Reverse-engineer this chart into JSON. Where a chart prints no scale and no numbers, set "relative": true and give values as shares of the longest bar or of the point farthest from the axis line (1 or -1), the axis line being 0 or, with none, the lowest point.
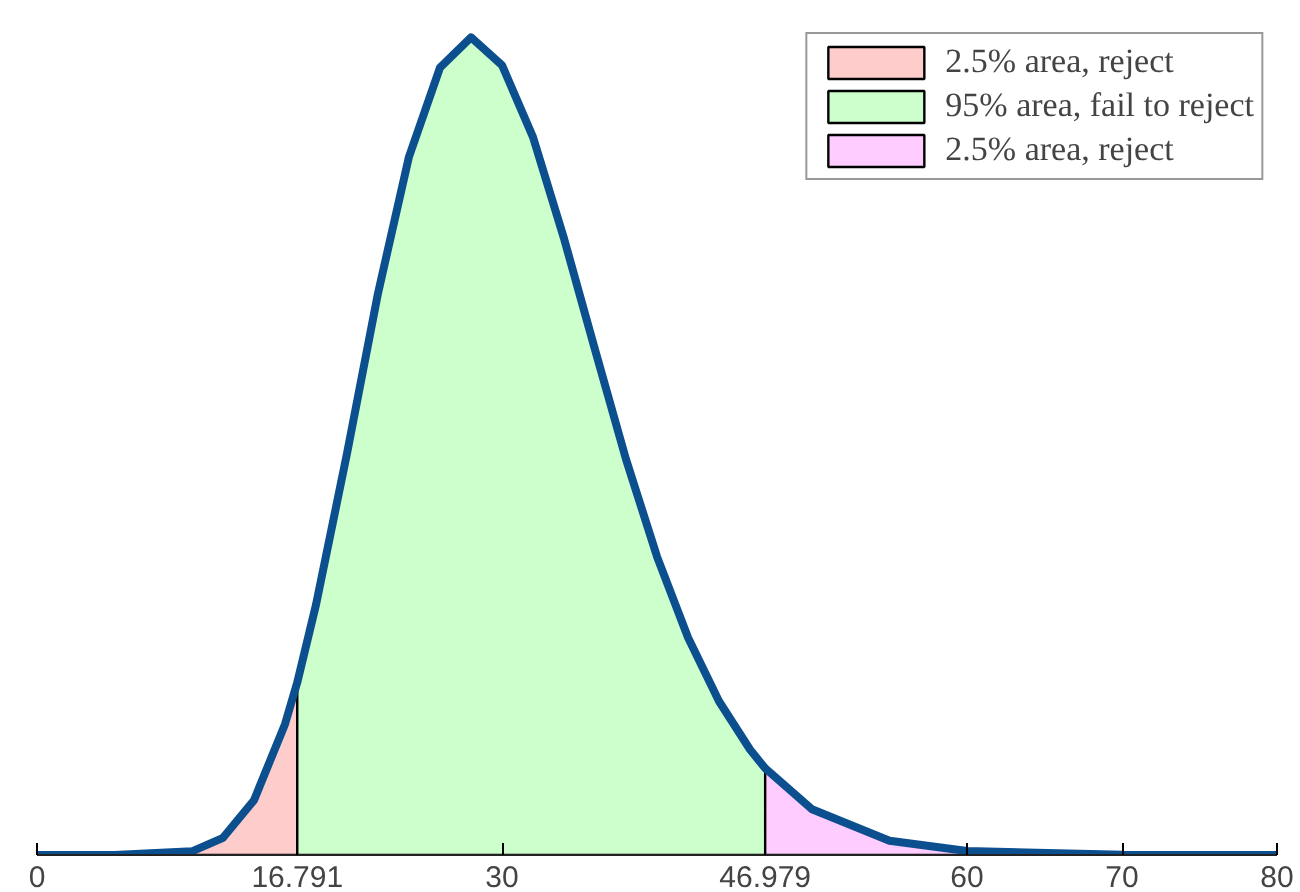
{
  "chart_data": {
    "type": "area",
    "relative": true,
    "xlim": [
      0,
      80
    ],
    "xticks": [
      0,
      {
        "value": 16.791,
        "label": "16.791"
      },
      30,
      {
        "value": 46.979,
        "label": "46.979"
      },
      60,
      70,
      80
    ],
    "legend": "top right",
    "grid": false,
    "series": [
      {
        "name": "2.5% area, reject",
        "color": "#ffcccc",
        "x": [
          0,
          5,
          10,
          12,
          14,
          16,
          16.791
        ],
        "values": [
          0,
          0,
          0.0045,
          0.021,
          0.067,
          0.16,
          0.211
        ]
      },
      {
        "name": "95% area, fail to reject",
        "color": "#ccffcc",
        "x": [
          16.791,
          18,
          20,
          22,
          24,
          26,
          28,
          30,
          32,
          34,
          36,
          38,
          40,
          42,
          44,
          46,
          46.979
        ],
        "values": [
          0.211,
          0.306,
          0.491,
          0.687,
          0.854,
          0.963,
          1,
          0.966,
          0.878,
          0.754,
          0.618,
          0.484,
          0.365,
          0.266,
          0.188,
          0.129,
          0.106
        ]
      },
      {
        "name": "2.5% area, reject",
        "color": "#ffccff",
        "x": [
          46.979,
          50,
          55,
          60,
          70,
          80
        ],
        "values": [
          0.106,
          0.056,
          0.0175,
          0.0048,
          0.0003,
          0
        ]
      },
      {
        "type": "line",
        "color": "#0b4f8f",
        "x": [
          0,
          5,
          10,
          12,
          14,
          16,
          16.791,
          18,
          20,
          22,
          24,
          26,
          28,
          30,
          32,
          34,
          36,
          38,
          40,
          42,
          44,
          46,
          46.979,
          50,
          55,
          60,
          70,
          80
        ],
        "values": [
          0,
          0,
          0.0045,
          0.021,
          0.067,
          0.16,
          0.211,
          0.306,
          0.491,
          0.687,
          0.854,
          0.963,
          1,
          0.966,
          0.878,
          0.754,
          0.618,
          0.484,
          0.365,
          0.266,
          0.188,
          0.129,
          0.106,
          0.056,
          0.0175,
          0.0048,
          0.0003,
          0
        ]
      }
    ]
  }
}
